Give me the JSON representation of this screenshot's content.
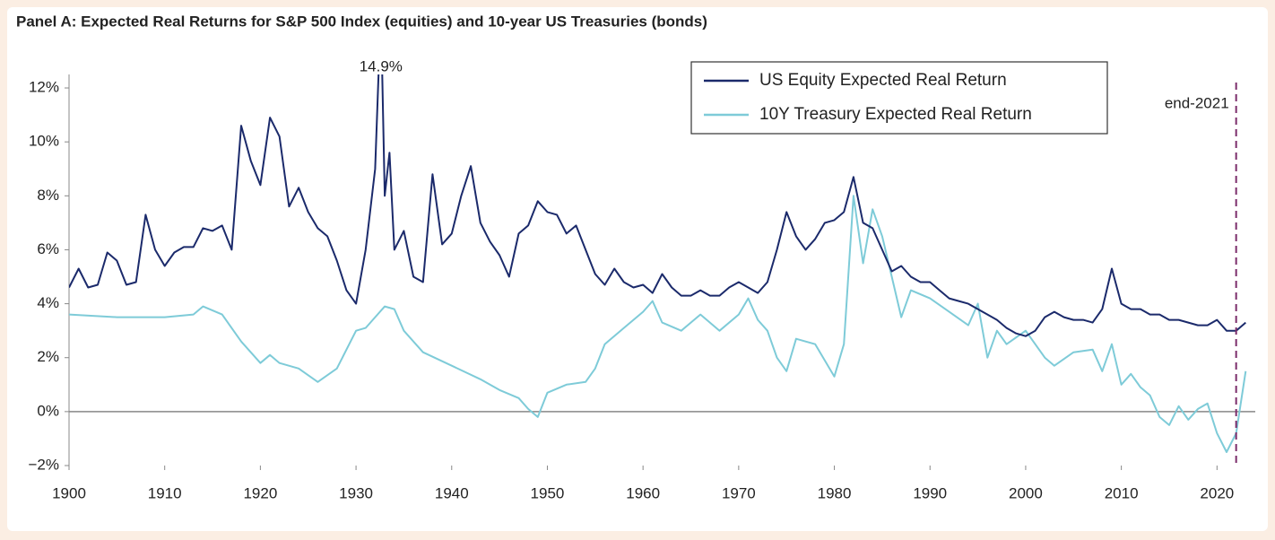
{
  "chart_data": {
    "type": "line",
    "title": "Panel A: Expected Real Returns for S&P 500 Index (equities) and 10-year US Treasuries (bonds)",
    "xlim": [
      1900,
      2024
    ],
    "xticks": [
      1900,
      1910,
      1920,
      1930,
      1940,
      1950,
      1960,
      1970,
      1980,
      1990,
      2000,
      2010,
      2020
    ],
    "ylim": [
      -2,
      12.5
    ],
    "yticks": [
      {
        "value": -2,
        "label": "−2%"
      },
      {
        "value": 0,
        "label": "0%"
      },
      {
        "value": 2,
        "label": "2%"
      },
      {
        "value": 4,
        "label": "4%"
      },
      {
        "value": 6,
        "label": "6%"
      },
      {
        "value": 8,
        "label": "8%"
      },
      {
        "value": 10,
        "label": "10%"
      },
      {
        "value": 12,
        "label": "12%"
      }
    ],
    "legend": "upper right",
    "annotation": {
      "text": "14.9%"
    },
    "vline": {
      "x": 2022,
      "label": "end-2021",
      "color": "#7b2d6b"
    },
    "series": [
      {
        "name": "US Equity Expected Real Return",
        "color": "#1b2a6b",
        "x": [
          1900,
          1901,
          1902,
          1903,
          1904,
          1905,
          1906,
          1907,
          1908,
          1909,
          1910,
          1911,
          1912,
          1913,
          1914,
          1915,
          1916,
          1917,
          1918,
          1919,
          1920,
          1921,
          1922,
          1923,
          1924,
          1925,
          1926,
          1927,
          1928,
          1929,
          1930,
          1931,
          1932,
          1932.6,
          1933,
          1933.5,
          1934,
          1935,
          1936,
          1937,
          1938,
          1939,
          1940,
          1941,
          1942,
          1943,
          1944,
          1945,
          1946,
          1947,
          1948,
          1949,
          1950,
          1951,
          1952,
          1953,
          1954,
          1955,
          1956,
          1957,
          1958,
          1959,
          1960,
          1961,
          1962,
          1963,
          1964,
          1965,
          1966,
          1967,
          1968,
          1969,
          1970,
          1971,
          1972,
          1973,
          1974,
          1975,
          1976,
          1977,
          1978,
          1979,
          1980,
          1981,
          1982,
          1983,
          1984,
          1985,
          1986,
          1987,
          1988,
          1989,
          1990,
          1991,
          1992,
          1993,
          1994,
          1995,
          1996,
          1997,
          1998,
          1999,
          2000,
          2001,
          2002,
          2003,
          2004,
          2005,
          2006,
          2007,
          2008,
          2009,
          2010,
          2011,
          2012,
          2013,
          2014,
          2015,
          2016,
          2017,
          2018,
          2019,
          2020,
          2021,
          2022,
          2023
        ],
        "values": [
          4.6,
          5.3,
          4.6,
          4.7,
          5.9,
          5.6,
          4.7,
          4.8,
          7.3,
          6.0,
          5.4,
          5.9,
          6.1,
          6.1,
          6.8,
          6.7,
          6.9,
          6.0,
          10.6,
          9.3,
          8.4,
          10.9,
          10.2,
          7.6,
          8.3,
          7.4,
          6.8,
          6.5,
          5.6,
          4.5,
          4.0,
          6.0,
          9.0,
          14.9,
          8.0,
          9.6,
          6.0,
          6.7,
          5.0,
          4.8,
          8.8,
          6.2,
          6.6,
          8.0,
          9.1,
          7.0,
          6.3,
          5.8,
          5.0,
          6.6,
          6.9,
          7.8,
          7.4,
          7.3,
          6.6,
          6.9,
          6.0,
          5.1,
          4.7,
          5.3,
          4.8,
          4.6,
          4.7,
          4.4,
          5.1,
          4.6,
          4.3,
          4.3,
          4.5,
          4.3,
          4.3,
          4.6,
          4.8,
          4.6,
          4.4,
          4.8,
          6.0,
          7.4,
          6.5,
          6.0,
          6.4,
          7.0,
          7.1,
          7.4,
          8.7,
          7.0,
          6.8,
          6.0,
          5.2,
          5.4,
          5.0,
          4.8,
          4.8,
          4.5,
          4.2,
          4.1,
          4.0,
          3.8,
          3.6,
          3.4,
          3.1,
          2.9,
          2.8,
          3.0,
          3.5,
          3.7,
          3.5,
          3.4,
          3.4,
          3.3,
          3.8,
          5.3,
          4.0,
          3.8,
          3.8,
          3.6,
          3.6,
          3.4,
          3.4,
          3.3,
          3.2,
          3.2,
          3.4,
          3.0,
          3.0,
          3.3
        ]
      },
      {
        "name": "10Y Treasury Expected Real Return",
        "color": "#7ecbd8",
        "x": [
          1900,
          1905,
          1910,
          1913,
          1914,
          1916,
          1918,
          1920,
          1921,
          1922,
          1924,
          1926,
          1928,
          1930,
          1931,
          1932,
          1933,
          1934,
          1935,
          1937,
          1940,
          1943,
          1945,
          1947,
          1948,
          1949,
          1950,
          1952,
          1954,
          1955,
          1956,
          1958,
          1960,
          1961,
          1962,
          1964,
          1966,
          1968,
          1970,
          1971,
          1972,
          1973,
          1974,
          1975,
          1976,
          1978,
          1980,
          1981,
          1982,
          1983,
          1984,
          1985,
          1986,
          1987,
          1988,
          1990,
          1992,
          1994,
          1995,
          1996,
          1997,
          1998,
          2000,
          2002,
          2003,
          2005,
          2007,
          2008,
          2009,
          2010,
          2011,
          2012,
          2013,
          2014,
          2015,
          2016,
          2017,
          2018,
          2019,
          2020,
          2021,
          2022,
          2023
        ],
        "values": [
          3.6,
          3.5,
          3.5,
          3.6,
          3.9,
          3.6,
          2.6,
          1.8,
          2.1,
          1.8,
          1.6,
          1.1,
          1.6,
          3.0,
          3.1,
          3.5,
          3.9,
          3.8,
          3.0,
          2.2,
          1.7,
          1.2,
          0.8,
          0.5,
          0.1,
          -0.2,
          0.7,
          1.0,
          1.1,
          1.6,
          2.5,
          3.1,
          3.7,
          4.1,
          3.3,
          3.0,
          3.6,
          3.0,
          3.6,
          4.2,
          3.4,
          3.0,
          2.0,
          1.5,
          2.7,
          2.5,
          1.3,
          2.5,
          8.0,
          5.5,
          7.5,
          6.5,
          5.0,
          3.5,
          4.5,
          4.2,
          3.7,
          3.2,
          4.0,
          2.0,
          3.0,
          2.5,
          3.0,
          2.0,
          1.7,
          2.2,
          2.3,
          1.5,
          2.5,
          1.0,
          1.4,
          0.9,
          0.6,
          -0.2,
          -0.5,
          0.2,
          -0.3,
          0.1,
          0.3,
          -0.8,
          -1.5,
          -0.8,
          1.5
        ]
      }
    ]
  }
}
